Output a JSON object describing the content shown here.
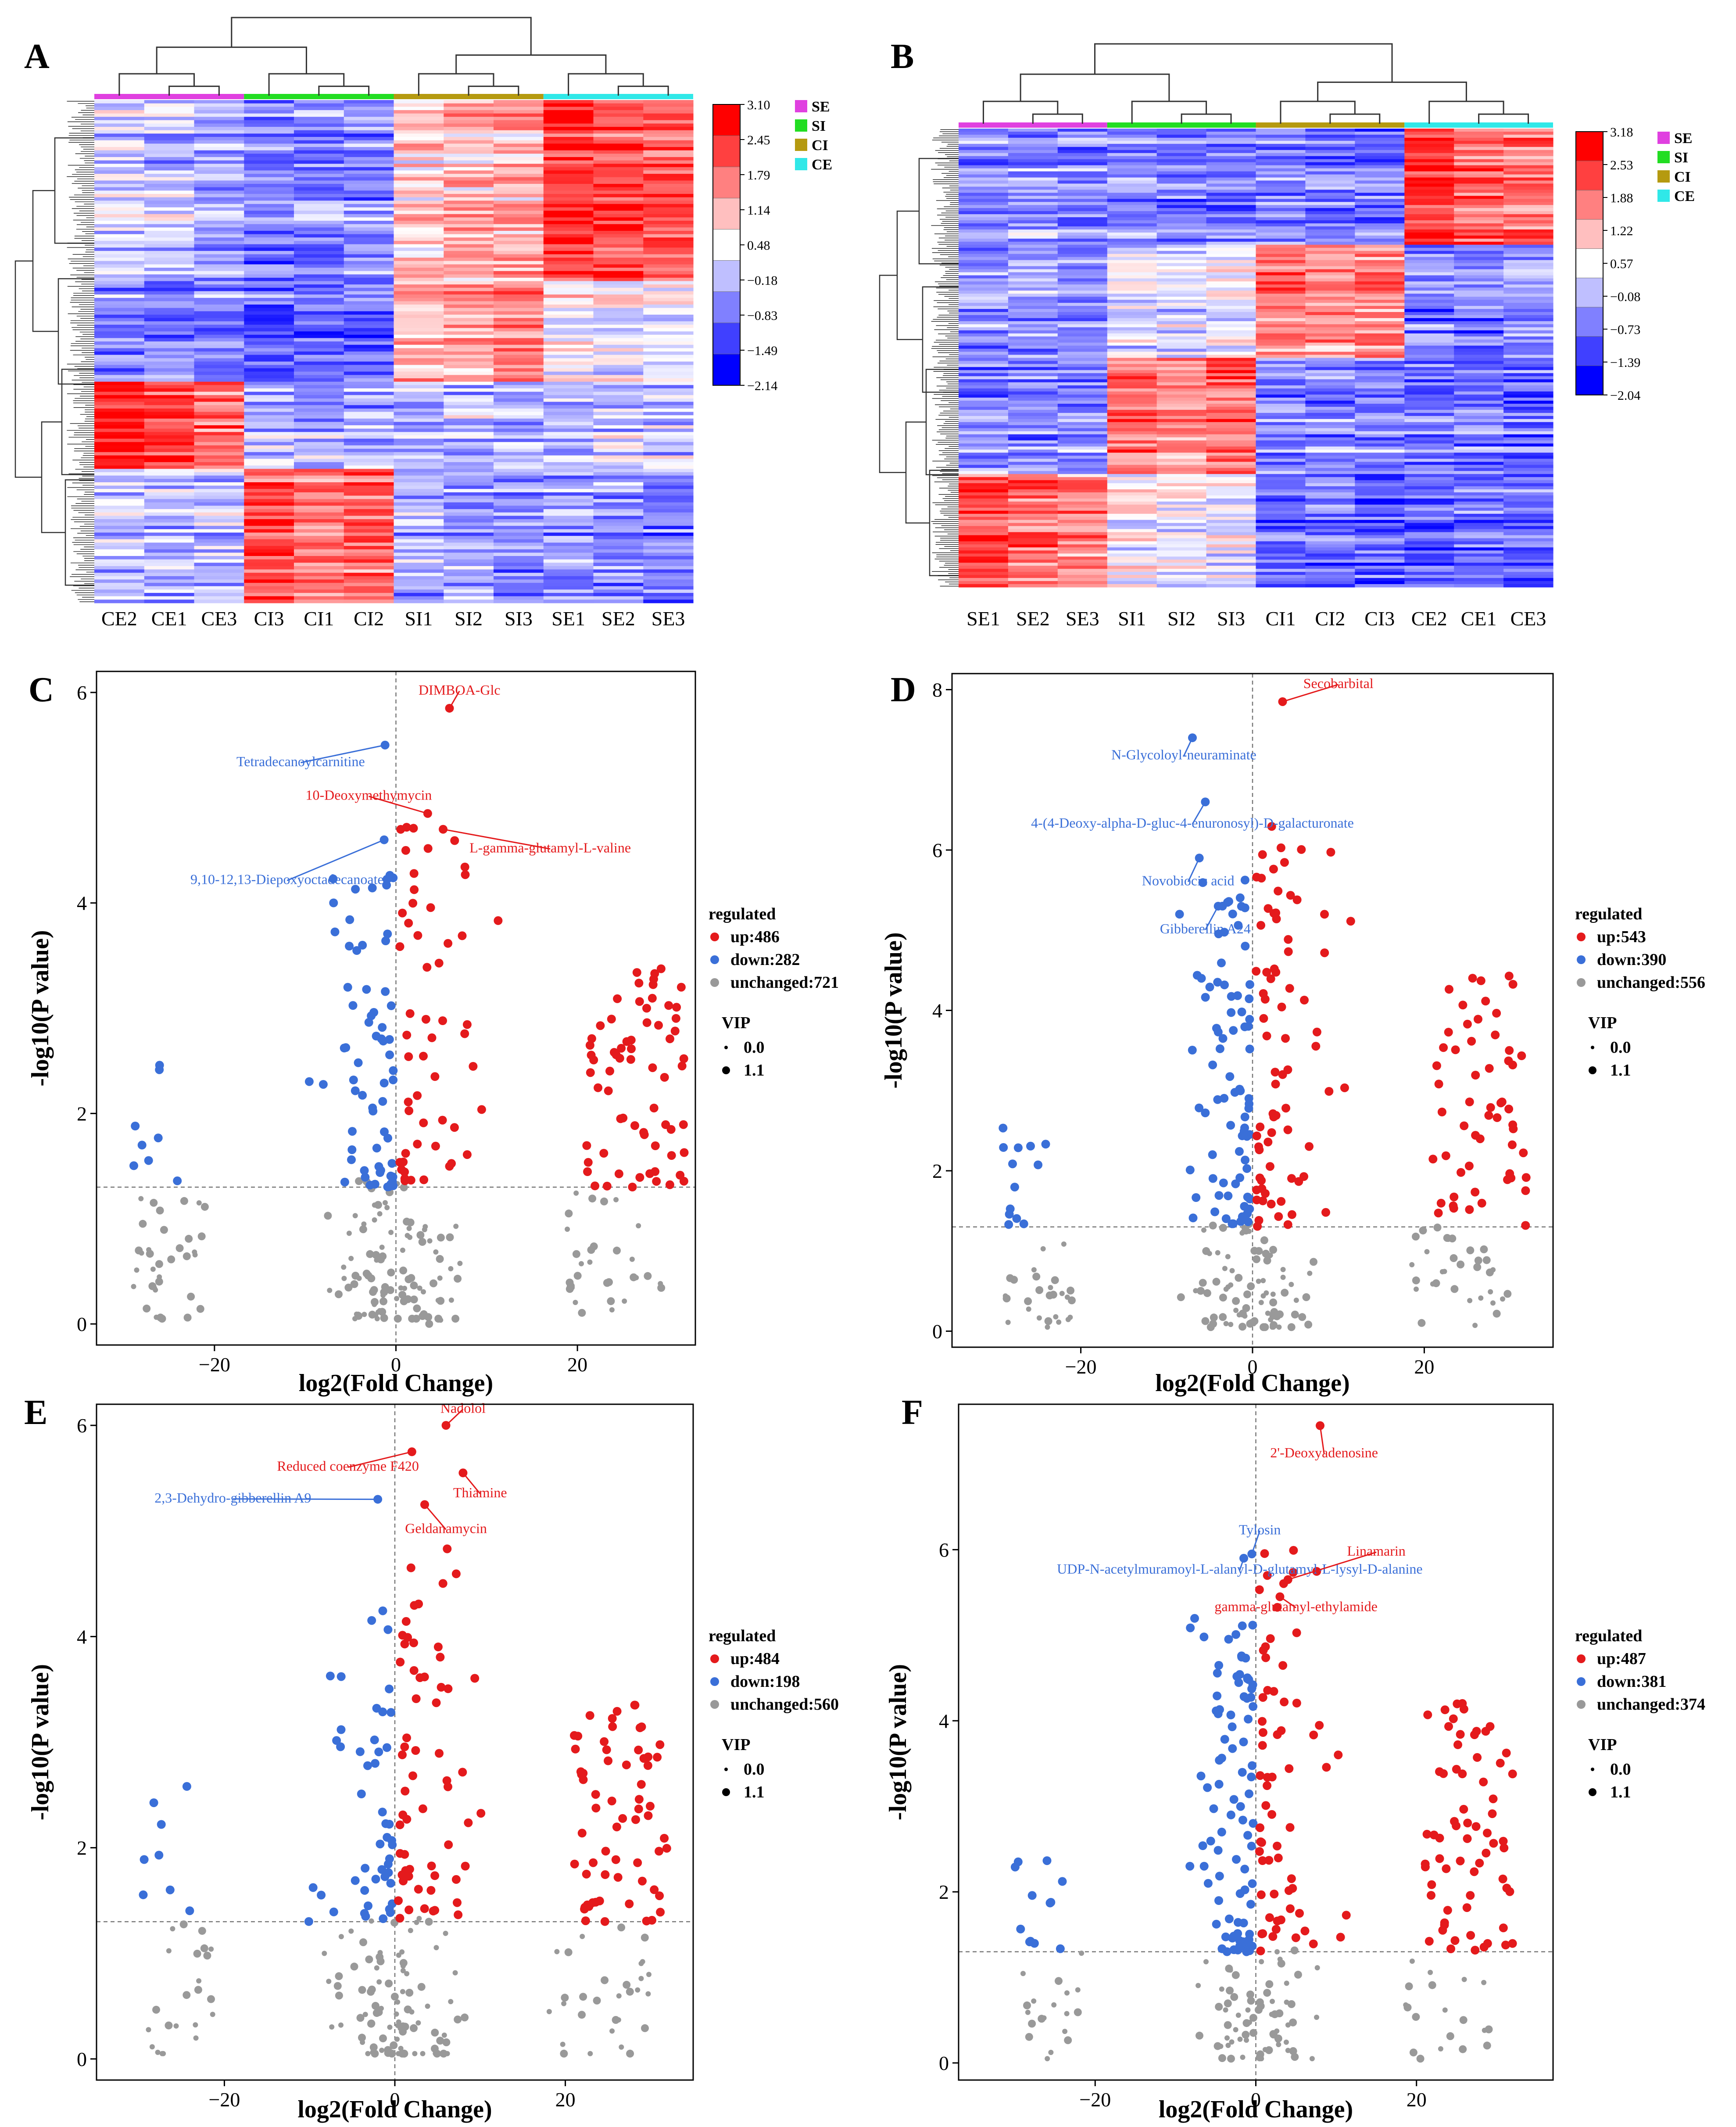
{
  "heatmaps": [
    {
      "letter": "A",
      "columns": [
        "CE2",
        "CE1",
        "CE3",
        "CI3",
        "CI1",
        "CI2",
        "SI1",
        "SI2",
        "SI3",
        "SE1",
        "SE2",
        "SE3"
      ],
      "group_bar": [
        "SE",
        "SI",
        "CI",
        "CE"
      ],
      "legend_ticks": [
        "3.10",
        "2.45",
        "1.79",
        "1.14",
        "0.48",
        "−0.18",
        "−0.83",
        "−1.49",
        "−2.14"
      ],
      "groups": [
        {
          "label": "SE",
          "color": "#e040e0"
        },
        {
          "label": "SI",
          "color": "#22dd22"
        },
        {
          "label": "CI",
          "color": "#b59a10"
        },
        {
          "label": "CE",
          "color": "#30e8e8"
        }
      ],
      "blocks": [
        [
          -0.4,
          -0.5,
          -0.7,
          -1.1,
          -1.0,
          -0.9,
          0.3,
          0.5,
          0.6,
          1.6,
          1.4,
          1.2
        ],
        [
          -0.9,
          -0.9,
          -0.9,
          -1.2,
          -1.1,
          -1.2,
          0.6,
          0.8,
          1.2,
          0.1,
          0.0,
          -0.1
        ],
        [
          1.9,
          1.4,
          1.2,
          -0.6,
          -0.7,
          -0.7,
          -0.6,
          -0.5,
          -0.6,
          -0.5,
          -0.4,
          -0.5
        ],
        [
          -0.5,
          -0.6,
          -0.6,
          1.4,
          1.0,
          1.2,
          -0.7,
          -0.8,
          -0.9,
          -0.8,
          -0.9,
          -1.0
        ]
      ]
    },
    {
      "letter": "B",
      "columns": [
        "SE1",
        "SE2",
        "SE3",
        "SI1",
        "SI2",
        "SI3",
        "CI1",
        "CI2",
        "CI3",
        "CE2",
        "CE1",
        "CE3"
      ],
      "group_bar": [
        "SE",
        "SI",
        "CI",
        "CE"
      ],
      "legend_ticks": [
        "3.18",
        "2.53",
        "1.88",
        "1.22",
        "0.57",
        "−0.08",
        "−0.73",
        "−1.39",
        "−2.04"
      ],
      "groups": [
        {
          "label": "SE",
          "color": "#e040e0"
        },
        {
          "label": "SI",
          "color": "#22dd22"
        },
        {
          "label": "CI",
          "color": "#b59a10"
        },
        {
          "label": "CE",
          "color": "#30e8e8"
        }
      ],
      "blocks": [
        [
          -0.8,
          -0.8,
          -0.9,
          -0.9,
          -1.0,
          -1.0,
          -0.9,
          -1.0,
          -1.0,
          1.7,
          1.3,
          1.2
        ],
        [
          -0.9,
          -0.9,
          -1.0,
          -0.4,
          -0.3,
          -0.2,
          1.0,
          0.8,
          0.9,
          -1.1,
          -1.1,
          -1.0
        ],
        [
          -0.9,
          -0.9,
          -0.9,
          1.2,
          1.0,
          1.4,
          -0.9,
          -1.0,
          -0.9,
          -1.0,
          -1.0,
          -1.1
        ],
        [
          1.3,
          1.2,
          0.9,
          0.0,
          -0.2,
          -0.2,
          -1.2,
          -1.2,
          -1.3,
          -1.2,
          -1.2,
          -1.3
        ]
      ]
    }
  ],
  "chart_data": [
    {
      "panel": "C",
      "type": "scatter",
      "xlabel": "log2(Fold Change)",
      "ylabel": "-log10(P value)",
      "xlim": [
        -33,
        33
      ],
      "ylim": [
        -0.2,
        6.2
      ],
      "xticks": [
        -20,
        0,
        20
      ],
      "yticks": [
        0,
        2,
        4,
        6
      ],
      "threshold_y": 1.3,
      "series": [
        {
          "name": "up",
          "count": 486,
          "color": "#e41a1c"
        },
        {
          "name": "down",
          "count": 282,
          "color": "#3a6fd8"
        },
        {
          "name": "unchanged",
          "count": 721,
          "color": "#999999"
        }
      ],
      "legend": {
        "title": "regulated",
        "items": [
          "up:486",
          "down:282",
          "unchanged:721"
        ],
        "vip_title": "VIP",
        "vip_items": [
          "0.0",
          "1.1"
        ]
      },
      "annotations": [
        {
          "text": "DIMBOA-Glc",
          "x": 5.9,
          "y": 5.85,
          "tx": 7,
          "ty": 5.98,
          "color": "#e41a1c"
        },
        {
          "text": "Tetradecanoylcarnitine",
          "x": -1.2,
          "y": 5.5,
          "tx": -10.5,
          "ty": 5.3,
          "color": "#3a6fd8"
        },
        {
          "text": "10-Deoxymethymycin",
          "x": 3.5,
          "y": 4.85,
          "tx": -3,
          "ty": 4.98,
          "color": "#e41a1c"
        },
        {
          "text": "L-gamma-glutamyl-L-valine",
          "x": 5.2,
          "y": 4.7,
          "tx": 17,
          "ty": 4.48,
          "color": "#e41a1c"
        },
        {
          "text": "9,10-12,13-Diepoxyoctadecanoate",
          "x": -1.3,
          "y": 4.6,
          "tx": -12,
          "ty": 4.18,
          "color": "#3a6fd8"
        }
      ],
      "gen": {
        "seed": 11,
        "up": 120,
        "down": 75,
        "un": 180
      }
    },
    {
      "panel": "D",
      "type": "scatter",
      "xlabel": "log2(Fold Change)",
      "ylabel": "-log10(P value)",
      "xlim": [
        -35,
        35
      ],
      "ylim": [
        -0.2,
        8.2
      ],
      "xticks": [
        -20,
        0,
        20
      ],
      "yticks": [
        0,
        2,
        4,
        6,
        8
      ],
      "threshold_y": 1.3,
      "series": [
        {
          "name": "up",
          "count": 543,
          "color": "#e41a1c"
        },
        {
          "name": "down",
          "count": 390,
          "color": "#3a6fd8"
        },
        {
          "name": "unchanged",
          "count": 556,
          "color": "#999999"
        }
      ],
      "legend": {
        "title": "regulated",
        "items": [
          "up:543",
          "down:390",
          "unchanged:556"
        ],
        "vip_title": "VIP",
        "vip_items": [
          "0.0",
          "1.1"
        ]
      },
      "annotations": [
        {
          "text": "Secobarbital",
          "x": 3.5,
          "y": 7.85,
          "tx": 10,
          "ty": 8.02,
          "color": "#e41a1c"
        },
        {
          "text": "N-Glycoloyl-neuraminate",
          "x": -7,
          "y": 7.4,
          "tx": -8,
          "ty": 7.13,
          "color": "#3a6fd8"
        },
        {
          "text": "4-(4-Deoxy-alpha-D-gluc-4-enuronosyl)-D-galacturonate",
          "x": -5.5,
          "y": 6.6,
          "tx": -7,
          "ty": 6.28,
          "color": "#3a6fd8"
        },
        {
          "text": "Novobiocic acid",
          "x": -6.2,
          "y": 5.9,
          "tx": -7.5,
          "ty": 5.56,
          "color": "#3a6fd8"
        },
        {
          "text": "Gibberellin A24",
          "x": -4,
          "y": 5.3,
          "tx": -5.5,
          "ty": 4.96,
          "color": "#3a6fd8"
        }
      ],
      "gen": {
        "seed": 22,
        "up": 130,
        "down": 95,
        "un": 150
      }
    },
    {
      "panel": "E",
      "type": "scatter",
      "xlabel": "log2(Fold Change)",
      "ylabel": "-log10(P value)",
      "xlim": [
        -35,
        35
      ],
      "ylim": [
        -0.2,
        6.2
      ],
      "xticks": [
        -20,
        0,
        20
      ],
      "yticks": [
        0,
        2,
        4,
        6
      ],
      "threshold_y": 1.3,
      "series": [
        {
          "name": "up",
          "count": 484,
          "color": "#e41a1c"
        },
        {
          "name": "down",
          "count": 198,
          "color": "#3a6fd8"
        },
        {
          "name": "unchanged",
          "count": 560,
          "color": "#999999"
        }
      ],
      "legend": {
        "title": "regulated",
        "items": [
          "up:484",
          "down:198",
          "unchanged:560"
        ],
        "vip_title": "VIP",
        "vip_items": [
          "0.0",
          "1.1"
        ]
      },
      "annotations": [
        {
          "text": "Nadolol",
          "x": 6,
          "y": 6.0,
          "tx": 8,
          "ty": 6.12,
          "color": "#e41a1c"
        },
        {
          "text": "Reduced coenzyme F420",
          "x": 2,
          "y": 5.75,
          "tx": -5.5,
          "ty": 5.57,
          "color": "#e41a1c"
        },
        {
          "text": "Thiamine",
          "x": 8,
          "y": 5.55,
          "tx": 10,
          "ty": 5.32,
          "color": "#e41a1c"
        },
        {
          "text": "2,3-Dehydro-gibberellin A9",
          "x": -2,
          "y": 5.3,
          "tx": -19,
          "ty": 5.27,
          "color": "#3a6fd8"
        },
        {
          "text": "Geldanamycin",
          "x": 3.5,
          "y": 5.25,
          "tx": 6,
          "ty": 4.98,
          "color": "#e41a1c"
        }
      ],
      "gen": {
        "seed": 33,
        "up": 125,
        "down": 55,
        "un": 150
      }
    },
    {
      "panel": "F",
      "type": "scatter",
      "xlabel": "log2(Fold Change)",
      "ylabel": "-log10(P value)",
      "xlim": [
        -37,
        37
      ],
      "ylim": [
        -0.2,
        7.7
      ],
      "xticks": [
        -20,
        0,
        20
      ],
      "yticks": [
        0,
        2,
        4,
        6
      ],
      "threshold_y": 1.3,
      "series": [
        {
          "name": "up",
          "count": 487,
          "color": "#e41a1c"
        },
        {
          "name": "down",
          "count": 381,
          "color": "#3a6fd8"
        },
        {
          "name": "unchanged",
          "count": 374,
          "color": "#999999"
        }
      ],
      "legend": {
        "title": "regulated",
        "items": [
          "up:487",
          "down:381",
          "unchanged:374"
        ],
        "vip_title": "VIP",
        "vip_items": [
          "0.0",
          "1.1"
        ]
      },
      "annotations": [
        {
          "text": "2'-Deoxyadenosine",
          "x": 8,
          "y": 7.45,
          "tx": 8.5,
          "ty": 7.08,
          "color": "#e41a1c"
        },
        {
          "text": "Tylosin",
          "x": -0.5,
          "y": 5.95,
          "tx": 0.5,
          "ty": 6.18,
          "color": "#3a6fd8"
        },
        {
          "text": "UDP-N-acetylmuramoyl-L-alanyl-D-glutamyl-L-lysyl-D-alanine",
          "x": -1.5,
          "y": 5.9,
          "tx": -2,
          "ty": 5.72,
          "color": "#3a6fd8"
        },
        {
          "text": "Linamarin",
          "x": 4,
          "y": 5.65,
          "tx": 15,
          "ty": 5.93,
          "color": "#e41a1c"
        },
        {
          "text": "gamma-glutamyl-ethylamide",
          "x": 3,
          "y": 5.45,
          "tx": 5,
          "ty": 5.28,
          "color": "#e41a1c"
        }
      ],
      "gen": {
        "seed": 44,
        "up": 130,
        "down": 100,
        "un": 110
      }
    }
  ]
}
